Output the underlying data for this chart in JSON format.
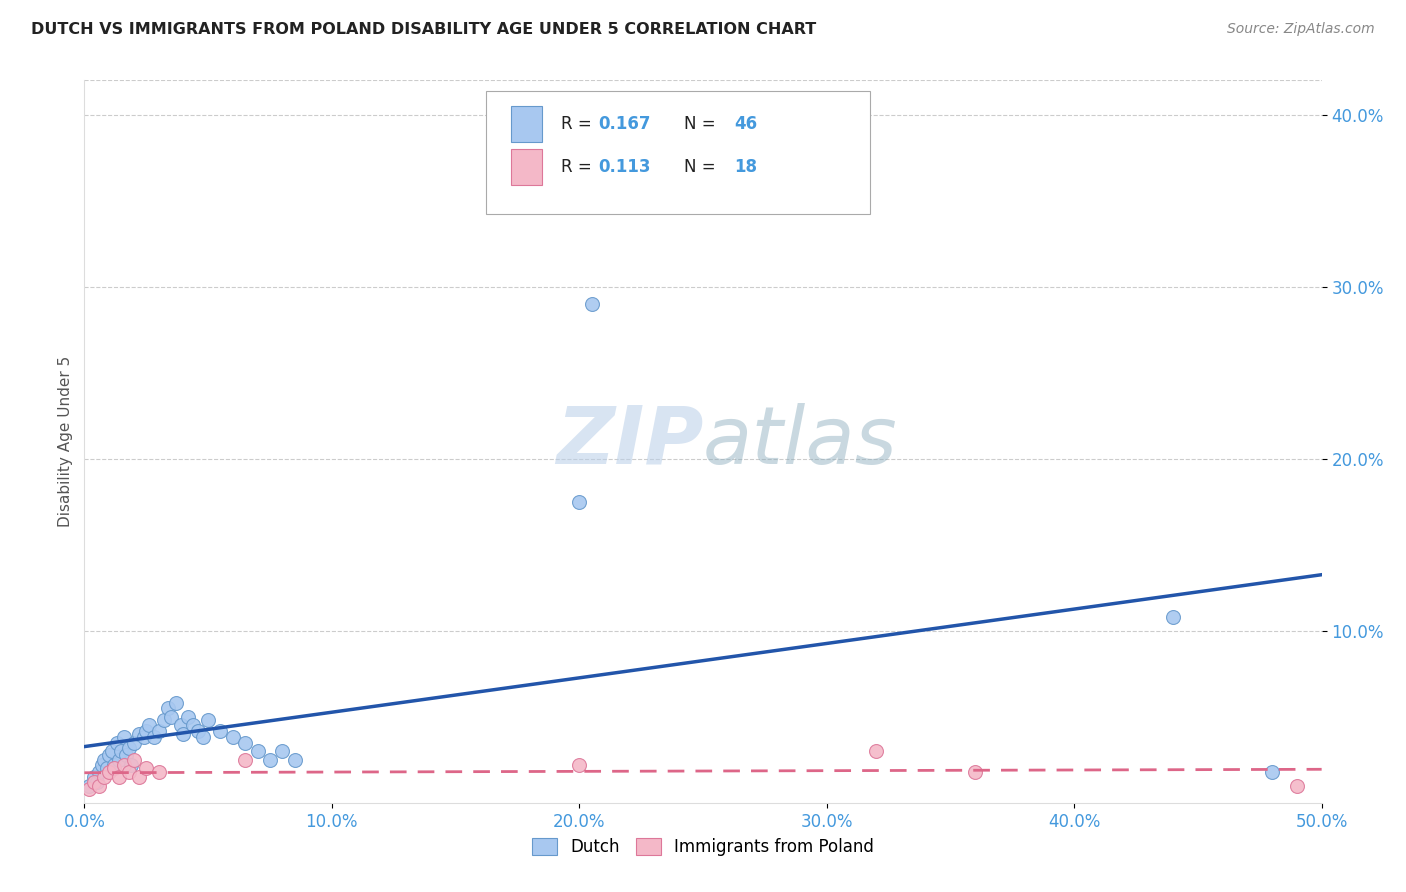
{
  "title": "DUTCH VS IMMIGRANTS FROM POLAND DISABILITY AGE UNDER 5 CORRELATION CHART",
  "source": "Source: ZipAtlas.com",
  "ylabel": "Disability Age Under 5",
  "xlim": [
    0.0,
    0.5
  ],
  "ylim": [
    0.0,
    0.42
  ],
  "xticks": [
    0.0,
    0.1,
    0.2,
    0.3,
    0.4,
    0.5
  ],
  "yticks": [
    0.1,
    0.2,
    0.3,
    0.4
  ],
  "ytick_labels_right": [
    "10.0%",
    "20.0%",
    "30.0%",
    "40.0%"
  ],
  "xtick_labels": [
    "0.0%",
    "10.0%",
    "20.0%",
    "30.0%",
    "40.0%",
    "50.0%"
  ],
  "dutch_color": "#A8C8F0",
  "dutch_edge_color": "#6699CC",
  "poland_color": "#F4B8C8",
  "poland_edge_color": "#DD7799",
  "trendline_dutch_color": "#2255AA",
  "trendline_poland_color": "#DD6688",
  "R_dutch": 0.167,
  "N_dutch": 46,
  "R_poland": 0.113,
  "N_poland": 18,
  "dutch_x": [
    0.002,
    0.004,
    0.005,
    0.006,
    0.007,
    0.008,
    0.009,
    0.01,
    0.011,
    0.012,
    0.013,
    0.014,
    0.015,
    0.016,
    0.017,
    0.018,
    0.019,
    0.02,
    0.022,
    0.024,
    0.025,
    0.026,
    0.028,
    0.03,
    0.032,
    0.034,
    0.035,
    0.037,
    0.039,
    0.04,
    0.042,
    0.044,
    0.046,
    0.048,
    0.05,
    0.055,
    0.06,
    0.065,
    0.07,
    0.075,
    0.08,
    0.085,
    0.2,
    0.205,
    0.44,
    0.48
  ],
  "dutch_y": [
    0.01,
    0.015,
    0.012,
    0.018,
    0.022,
    0.025,
    0.02,
    0.028,
    0.03,
    0.022,
    0.035,
    0.025,
    0.03,
    0.038,
    0.028,
    0.032,
    0.022,
    0.035,
    0.04,
    0.038,
    0.042,
    0.045,
    0.038,
    0.042,
    0.048,
    0.055,
    0.05,
    0.058,
    0.045,
    0.04,
    0.05,
    0.045,
    0.042,
    0.038,
    0.048,
    0.042,
    0.038,
    0.035,
    0.03,
    0.025,
    0.03,
    0.025,
    0.175,
    0.29,
    0.108,
    0.018
  ],
  "poland_x": [
    0.002,
    0.004,
    0.006,
    0.008,
    0.01,
    0.012,
    0.014,
    0.016,
    0.018,
    0.02,
    0.022,
    0.025,
    0.03,
    0.065,
    0.2,
    0.32,
    0.36,
    0.49
  ],
  "poland_y": [
    0.008,
    0.012,
    0.01,
    0.015,
    0.018,
    0.02,
    0.015,
    0.022,
    0.018,
    0.025,
    0.015,
    0.02,
    0.018,
    0.025,
    0.022,
    0.03,
    0.018,
    0.01
  ],
  "background_color": "#FFFFFF",
  "grid_color": "#CCCCCC",
  "title_color": "#222222",
  "axis_tick_color": "#4499DD",
  "marker_size": 100,
  "watermark_text": "ZIPatlas",
  "watermark_color": "#C8DFF0",
  "legend_text_color": "#222222",
  "legend_value_color": "#4499DD"
}
